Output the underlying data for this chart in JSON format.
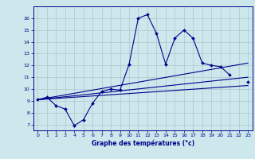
{
  "xlabel": "Graphe des températures (°c)",
  "hours": [
    0,
    1,
    2,
    3,
    4,
    5,
    6,
    7,
    8,
    9,
    10,
    11,
    12,
    13,
    14,
    15,
    16,
    17,
    18,
    19,
    20,
    21,
    22,
    23
  ],
  "temp_main": [
    9.1,
    9.3,
    8.6,
    8.3,
    6.9,
    7.4,
    8.8,
    9.8,
    10.0,
    9.9,
    12.1,
    16.0,
    16.3,
    14.7,
    12.1,
    14.3,
    15.0,
    14.3,
    12.2,
    12.0,
    11.9,
    11.2,
    null,
    10.6
  ],
  "trend1_x": [
    0,
    23
  ],
  "trend1_y": [
    9.1,
    12.2
  ],
  "trend2_x": [
    0,
    23
  ],
  "trend2_y": [
    9.1,
    11.0
  ],
  "trend3_x": [
    0,
    23
  ],
  "trend3_y": [
    9.1,
    10.3
  ],
  "bg_color": "#cce8ec",
  "line_color": "#00008b",
  "grid_color": "#aac8cc",
  "xlim": [
    -0.5,
    23.5
  ],
  "ylim": [
    6.5,
    17.0
  ],
  "xticks": [
    0,
    1,
    2,
    3,
    4,
    5,
    6,
    7,
    8,
    9,
    10,
    11,
    12,
    13,
    14,
    15,
    16,
    17,
    18,
    19,
    20,
    21,
    22,
    23
  ],
  "yticks": [
    7,
    8,
    9,
    10,
    11,
    12,
    13,
    14,
    15,
    16
  ],
  "xlabel_fontsize": 5.5,
  "tick_fontsize": 4.5
}
